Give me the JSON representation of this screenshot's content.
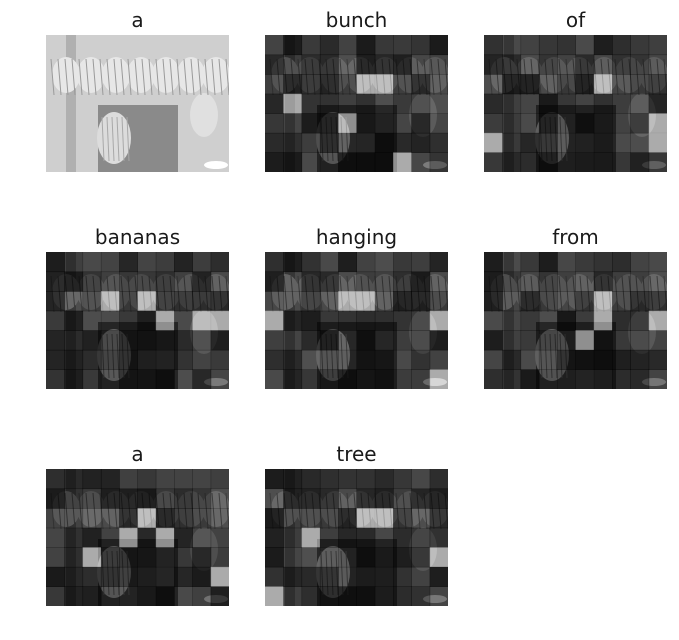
{
  "panels": [
    {
      "word": "a",
      "mode": "scene"
    },
    {
      "word": "bunch",
      "mode": "grid",
      "seed": 3,
      "hot": [
        [
          6,
          2
        ],
        [
          5,
          2
        ],
        [
          1,
          3
        ],
        [
          7,
          6
        ],
        [
          4,
          4
        ]
      ]
    },
    {
      "word": "of",
      "mode": "grid",
      "seed": 7,
      "hot": [
        [
          6,
          2
        ],
        [
          9,
          5
        ],
        [
          9,
          4
        ],
        [
          0,
          5
        ]
      ]
    },
    {
      "word": "bananas",
      "mode": "grid",
      "seed": 11,
      "hot": [
        [
          6,
          3
        ],
        [
          5,
          2
        ],
        [
          3,
          2
        ],
        [
          8,
          3
        ],
        [
          9,
          3
        ]
      ]
    },
    {
      "word": "hanging",
      "mode": "grid",
      "seed": 13,
      "hot": [
        [
          9,
          6
        ],
        [
          0,
          3
        ],
        [
          4,
          2
        ],
        [
          5,
          2
        ],
        [
          9,
          3
        ]
      ]
    },
    {
      "word": "from",
      "mode": "grid",
      "seed": 17,
      "hot": [
        [
          6,
          3
        ],
        [
          6,
          2
        ],
        [
          9,
          3
        ],
        [
          5,
          4
        ]
      ]
    },
    {
      "word": "a",
      "mode": "grid",
      "seed": 19,
      "hot": [
        [
          6,
          3
        ],
        [
          4,
          3
        ],
        [
          2,
          4
        ],
        [
          5,
          2
        ],
        [
          9,
          5
        ]
      ]
    },
    {
      "word": "tree",
      "mode": "grid",
      "seed": 23,
      "hot": [
        [
          6,
          2
        ],
        [
          2,
          3
        ],
        [
          5,
          2
        ],
        [
          9,
          4
        ],
        [
          0,
          6
        ]
      ]
    }
  ]
}
